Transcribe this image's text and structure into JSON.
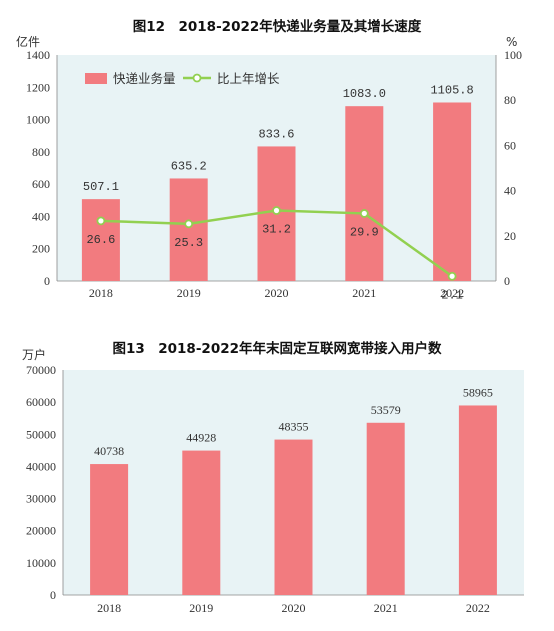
{
  "chart_data": [
    {
      "type": "bar+line",
      "title": "图12　2018-2022年快递业务量及其增长速度",
      "left_unit": "亿件",
      "right_unit": "%",
      "categories": [
        "2018",
        "2019",
        "2020",
        "2021",
        "2022"
      ],
      "series": [
        {
          "name": "快递业务量",
          "type": "bar",
          "axis": "left",
          "values": [
            507.1,
            635.2,
            833.6,
            1083.0,
            1105.8
          ],
          "labels": [
            "507.1",
            "635.2",
            "833.6",
            "1083.0",
            "1105.8"
          ]
        },
        {
          "name": "比上年增长",
          "type": "line",
          "axis": "right",
          "values": [
            26.6,
            25.3,
            31.2,
            29.9,
            2.1
          ],
          "labels": [
            "26.6",
            "25.3",
            "31.2",
            "29.9",
            "2.1"
          ]
        }
      ],
      "ylim_left": [
        0,
        1400
      ],
      "yticks_left": [
        "0",
        "200",
        "400",
        "600",
        "800",
        "1000",
        "1200",
        "1400"
      ],
      "ylim_right": [
        0,
        100
      ],
      "yticks_right": [
        "0",
        "20",
        "40",
        "60",
        "80",
        "100"
      ],
      "legend_position": "top-left",
      "grid": false,
      "colors": {
        "bar": "#f27b7f",
        "line": "#92d050",
        "plot_bg": "#e8f3f5"
      }
    },
    {
      "type": "bar",
      "title": "图13　2018-2022年年末固定互联网宽带接入用户数",
      "left_unit": "万户",
      "categories": [
        "2018",
        "2019",
        "2020",
        "2021",
        "2022"
      ],
      "values": [
        40738,
        44928,
        48355,
        53579,
        58965
      ],
      "labels": [
        "40738",
        "44928",
        "48355",
        "53579",
        "58965"
      ],
      "ylim": [
        0,
        70000
      ],
      "yticks": [
        "0",
        "10000",
        "20000",
        "30000",
        "40000",
        "50000",
        "60000",
        "70000"
      ],
      "grid": false,
      "colors": {
        "bar": "#f27b7f",
        "plot_bg": "#e8f3f5"
      }
    }
  ]
}
